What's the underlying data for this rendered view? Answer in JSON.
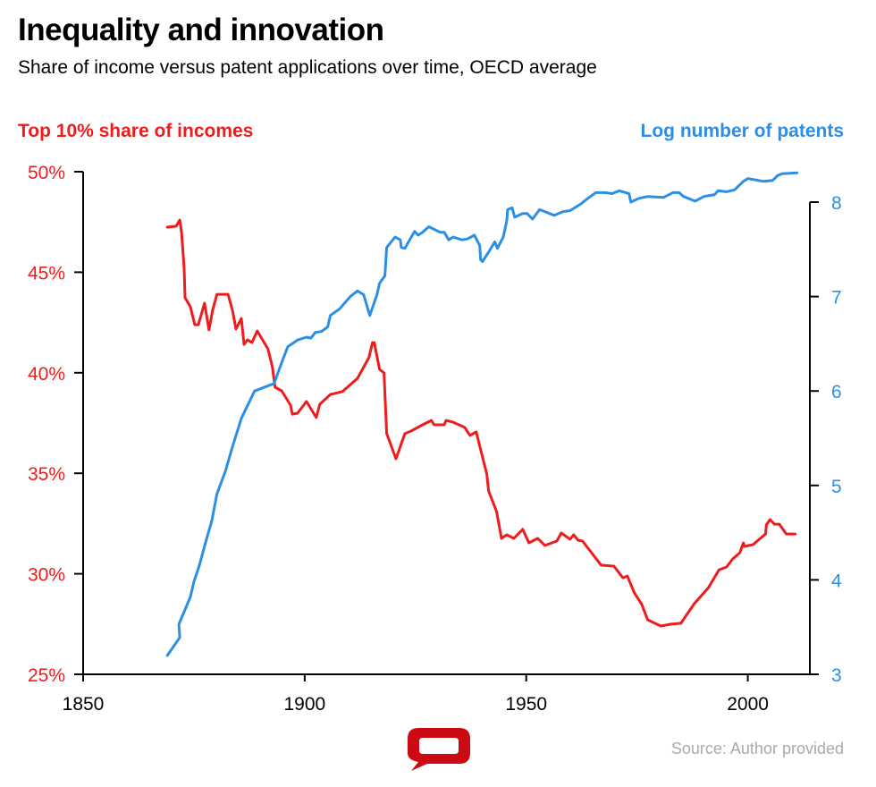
{
  "title": "Inequality and innovation",
  "subtitle": "Share of income versus patent applications over time, OECD average",
  "source": "Source: Author provided",
  "logo": "The Conversation speech-bubble logo",
  "colors": {
    "red": "#ee1c1c",
    "blue": "#2b8fe6",
    "logo": "#cc0a13"
  },
  "chart_data": {
    "type": "line",
    "title": "Inequality and innovation",
    "x_axis": {
      "min": 1850,
      "max": 2014,
      "ticks": [
        1850,
        1900,
        1950,
        2000
      ],
      "tick_labels": [
        "1850",
        "1900",
        "1950",
        "2000"
      ]
    },
    "y_left": {
      "label": "Top 10% share of incomes",
      "min": 25,
      "max": 50,
      "ticks": [
        25,
        30,
        35,
        40,
        45,
        50
      ],
      "tick_labels": [
        "25%",
        "30%",
        "35%",
        "40%",
        "45%",
        "50%"
      ]
    },
    "y_right": {
      "label": "Log number of patents",
      "min": 3,
      "max": 8.32,
      "ticks": [
        3,
        4,
        5,
        6,
        7,
        8
      ],
      "tick_labels": [
        "3",
        "4",
        "5",
        "6",
        "7",
        "8"
      ]
    },
    "grid": false,
    "series": [
      {
        "name": "Top 10% share of incomes",
        "axis": "left",
        "color": "#ee1c1c",
        "x": [
          1869.0,
          1871.0,
          1871.8,
          1872.2,
          1872.8,
          1873.0,
          1874.2,
          1875.2,
          1876.0,
          1877.4,
          1878.4,
          1879.2,
          1880.2,
          1882.7,
          1883.7,
          1884.5,
          1885.7,
          1886.3,
          1887.1,
          1888.1,
          1889.3,
          1891.7,
          1892.7,
          1893.3,
          1894.8,
          1896.8,
          1897.2,
          1898.4,
          1900.4,
          1902.6,
          1903.4,
          1905.8,
          1908.5,
          1911.9,
          1914.5,
          1915.3,
          1915.7,
          1916.9,
          1917.9,
          1918.5,
          1920.6,
          1922.6,
          1924.0,
          1926.6,
          1928.6,
          1929.2,
          1931.5,
          1931.9,
          1933.5,
          1936.1,
          1937.3,
          1938.7,
          1941.1,
          1941.5,
          1943.3,
          1944.4,
          1945.6,
          1947.2,
          1949.2,
          1950.6,
          1952.6,
          1954.2,
          1956.9,
          1957.9,
          1959.9,
          1960.7,
          1961.7,
          1962.7,
          1966.9,
          1969.8,
          1971.8,
          1972.8,
          1974.4,
          1976.0,
          1977.4,
          1979.0,
          1980.4,
          1982.5,
          1984.9,
          1987.9,
          1991.1,
          1993.5,
          1995.2,
          1996.6,
          1998.2,
          1999.0,
          1999.2,
          2001.2,
          2002.6,
          2004.0,
          2004.2,
          2005.0,
          2006.0,
          2007.1,
          2008.7,
          2010.7
        ],
        "y": [
          47.24,
          47.29,
          47.6,
          46.98,
          45.2,
          43.73,
          43.28,
          42.39,
          42.39,
          43.46,
          42.13,
          43.1,
          43.9,
          43.9,
          43.1,
          42.17,
          42.7,
          41.41,
          41.64,
          41.5,
          42.08,
          41.19,
          40.3,
          39.28,
          39.1,
          38.39,
          37.94,
          37.99,
          38.57,
          37.77,
          38.43,
          38.92,
          39.06,
          39.72,
          40.75,
          41.5,
          41.5,
          40.17,
          39.99,
          36.97,
          35.72,
          36.97,
          37.1,
          37.41,
          37.63,
          37.41,
          37.41,
          37.63,
          37.54,
          37.28,
          36.88,
          37.06,
          34.96,
          34.12,
          33.1,
          31.76,
          31.94,
          31.76,
          32.21,
          31.54,
          31.76,
          31.41,
          31.63,
          32.03,
          31.72,
          31.94,
          31.67,
          31.63,
          30.43,
          30.38,
          29.8,
          29.89,
          29.05,
          28.51,
          27.71,
          27.54,
          27.4,
          27.49,
          27.54,
          28.51,
          29.31,
          30.2,
          30.34,
          30.74,
          31.05,
          31.54,
          31.36,
          31.45,
          31.72,
          31.98,
          32.43,
          32.7,
          32.47,
          32.47,
          31.98,
          31.98
        ]
      },
      {
        "name": "Log number of patents",
        "axis": "right",
        "color": "#2b8fe6",
        "x": [
          1869.0,
          1871.8,
          1871.6,
          1874.2,
          1875.0,
          1876.2,
          1877.6,
          1879.0,
          1880.2,
          1882.1,
          1883.7,
          1885.7,
          1888.7,
          1893.1,
          1894.8,
          1896.2,
          1898.4,
          1900.4,
          1901.4,
          1902.4,
          1903.8,
          1905.2,
          1905.8,
          1907.9,
          1910.3,
          1911.9,
          1913.3,
          1914.7,
          1916.3,
          1916.9,
          1918.1,
          1918.5,
          1920.4,
          1921.6,
          1921.8,
          1922.6,
          1924.8,
          1925.6,
          1926.6,
          1928.0,
          1930.6,
          1931.5,
          1932.5,
          1933.5,
          1935.5,
          1936.7,
          1938.3,
          1939.5,
          1939.7,
          1940.1,
          1941.5,
          1942.9,
          1943.5,
          1944.8,
          1945.6,
          1945.8,
          1946.8,
          1947.4,
          1949.2,
          1950.2,
          1951.4,
          1953.0,
          1954.2,
          1956.3,
          1958.3,
          1959.9,
          1962.3,
          1963.9,
          1965.7,
          1967.7,
          1969.4,
          1971.0,
          1973.2,
          1973.6,
          1975.4,
          1977.4,
          1981.0,
          1983.1,
          1984.5,
          1985.5,
          1988.1,
          1990.1,
          1992.5,
          1993.3,
          1995.2,
          1997.0,
          1999.0,
          2000.0,
          2003.6,
          2005.6,
          2006.7,
          2007.7,
          2011.1
        ],
        "y": [
          3.2,
          3.39,
          3.53,
          3.82,
          3.98,
          4.15,
          4.39,
          4.62,
          4.91,
          5.15,
          5.41,
          5.71,
          6.0,
          6.08,
          6.3,
          6.47,
          6.54,
          6.57,
          6.56,
          6.62,
          6.63,
          6.68,
          6.8,
          6.87,
          7.0,
          7.06,
          7.02,
          6.8,
          7.02,
          7.14,
          7.22,
          7.52,
          7.63,
          7.6,
          7.52,
          7.51,
          7.69,
          7.65,
          7.68,
          7.74,
          7.68,
          7.68,
          7.6,
          7.63,
          7.6,
          7.61,
          7.65,
          7.54,
          7.39,
          7.37,
          7.47,
          7.58,
          7.51,
          7.63,
          7.8,
          7.92,
          7.94,
          7.84,
          7.88,
          7.88,
          7.82,
          7.92,
          7.9,
          7.86,
          7.9,
          7.91,
          7.98,
          8.04,
          8.1,
          8.1,
          8.09,
          8.12,
          8.09,
          8.0,
          8.04,
          8.06,
          8.05,
          8.1,
          8.1,
          8.06,
          8.01,
          8.06,
          8.08,
          8.12,
          8.11,
          8.13,
          8.22,
          8.25,
          8.22,
          8.23,
          8.28,
          8.3,
          8.31
        ]
      }
    ]
  }
}
